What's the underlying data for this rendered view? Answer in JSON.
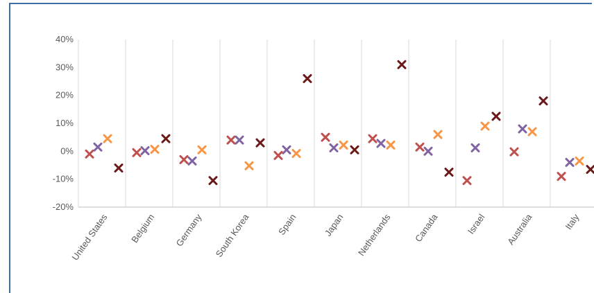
{
  "chart_data": {
    "type": "scatter",
    "title": "",
    "xlabel": "",
    "ylabel": "",
    "categories": [
      "United States",
      "Belgium",
      "Germany",
      "South Korea",
      "Spain",
      "Japan",
      "Netherlands",
      "Canada",
      "Israel",
      "Australia",
      "Italy"
    ],
    "ylim": [
      -0.2,
      0.4
    ],
    "yticks": [
      -0.2,
      -0.1,
      0,
      0.1,
      0.2,
      0.3,
      0.4
    ],
    "ytick_labels": [
      "-20%",
      "-10%",
      "0%",
      "10%",
      "20%",
      "30%",
      "40%"
    ],
    "grid": "vertical category separators",
    "marker": "x",
    "series": [
      {
        "color": "#c0504d",
        "values": [
          -0.01,
          -0.005,
          -0.03,
          0.04,
          -0.015,
          0.05,
          0.045,
          0.015,
          -0.105,
          -0.002,
          -0.09
        ]
      },
      {
        "color": "#8064a2",
        "values": [
          0.015,
          0.002,
          -0.035,
          0.04,
          0.005,
          0.012,
          0.028,
          0.0,
          0.012,
          0.08,
          -0.04
        ]
      },
      {
        "color": "#f79646",
        "values": [
          0.045,
          0.007,
          0.005,
          -0.052,
          -0.008,
          0.022,
          0.022,
          0.06,
          0.09,
          0.07,
          -0.035
        ]
      },
      {
        "color": "#6b1a1a",
        "values": [
          -0.06,
          0.045,
          -0.105,
          0.03,
          0.26,
          0.005,
          0.31,
          -0.075,
          0.125,
          0.18,
          -0.065
        ]
      }
    ]
  }
}
